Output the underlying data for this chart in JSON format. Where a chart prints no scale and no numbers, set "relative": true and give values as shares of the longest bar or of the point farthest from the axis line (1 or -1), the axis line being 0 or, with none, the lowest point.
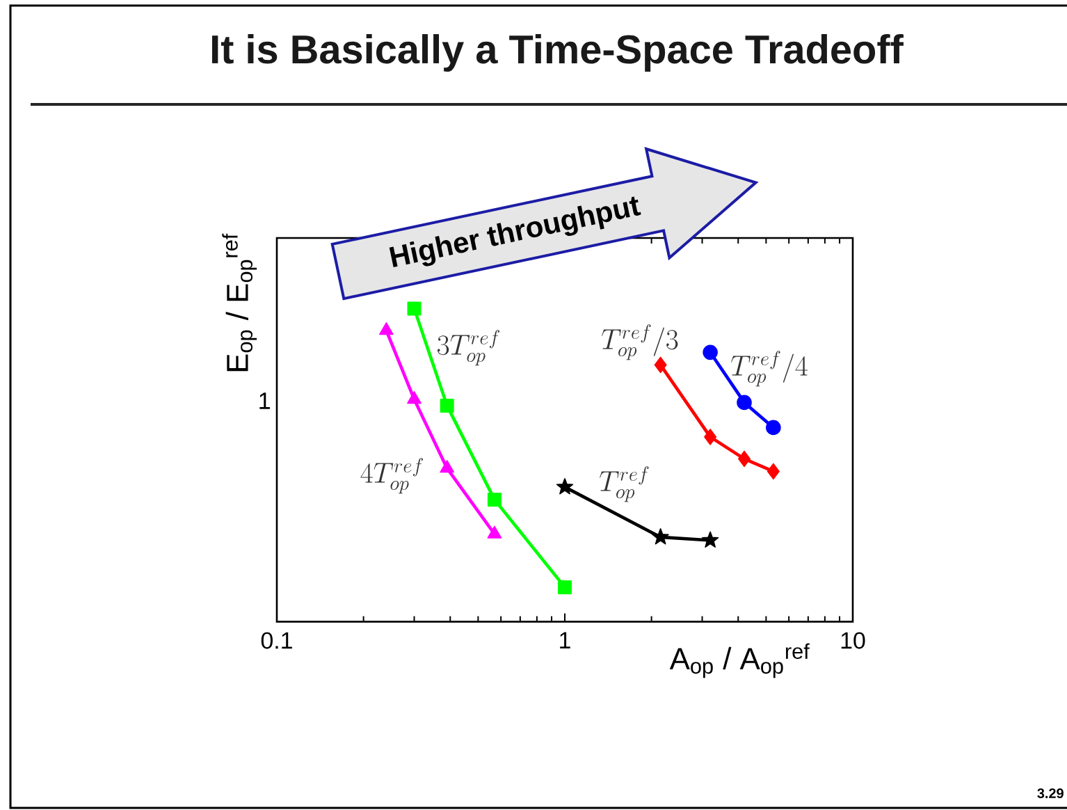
{
  "chart_data": {
    "type": "line",
    "title": "It is Basically a Time-Space Tradeoff",
    "xlabel": "A$_{op}$ / A$_{op}$$^{ref}$",
    "ylabel": "E$_{op}$ / E$_{op}$$^{ref}$",
    "log": "x",
    "relative": true,
    "xlim": [
      0.1,
      10
    ],
    "xticks": [
      0.1,
      {
        "value": 0.2,
        "label": null
      },
      {
        "value": 0.3,
        "label": null
      },
      {
        "value": 0.4,
        "label": null
      },
      {
        "value": 0.5,
        "label": null
      },
      {
        "value": 0.6,
        "label": null
      },
      {
        "value": 0.7,
        "label": null
      },
      {
        "value": 0.8,
        "label": null
      },
      {
        "value": 0.9,
        "label": null
      },
      1,
      {
        "value": 2,
        "label": null
      },
      {
        "value": 3,
        "label": null
      },
      {
        "value": 4,
        "label": null
      },
      {
        "value": 5,
        "label": null
      },
      {
        "value": 6,
        "label": null
      },
      {
        "value": 7,
        "label": null
      },
      {
        "value": 8,
        "label": null
      },
      {
        "value": 9,
        "label": null
      },
      10
    ],
    "line_style": "solid",
    "series": [
      {
        "name": "4T^{ref}_{op}",
        "color": "#ff00ff",
        "marker": "triangle",
        "x": [
          0.24,
          0.3,
          0.39,
          0.57
        ],
        "values": [
          0.93,
          0.71,
          0.49,
          0.28
        ]
      },
      {
        "name": "3T^{ref}_{op}",
        "color": "#00ff00",
        "marker": "square",
        "x": [
          0.3,
          0.39,
          0.57,
          1.0
        ],
        "values": [
          1.0,
          0.69,
          0.39,
          0.11
        ]
      },
      {
        "name": "T^{ref}_{op}",
        "color": "#000000",
        "marker": "star",
        "x": [
          1.0,
          2.15,
          3.2
        ],
        "values": [
          0.43,
          0.27,
          0.26
        ]
      },
      {
        "name": "T^{ref}_{op}/3",
        "color": "#ff0000",
        "marker": "diamond",
        "x": [
          2.15,
          3.2,
          4.2,
          5.3
        ],
        "values": [
          0.82,
          0.59,
          0.52,
          0.48
        ]
      },
      {
        "name": "T^{ref}_{op}/4",
        "color": "#0000ff",
        "marker": "circle",
        "x": [
          3.2,
          4.2,
          5.3
        ],
        "values": [
          0.86,
          0.7,
          0.62
        ]
      }
    ],
    "annotations": [
      "Higher throughput",
      "1",
      "3.29"
    ]
  }
}
